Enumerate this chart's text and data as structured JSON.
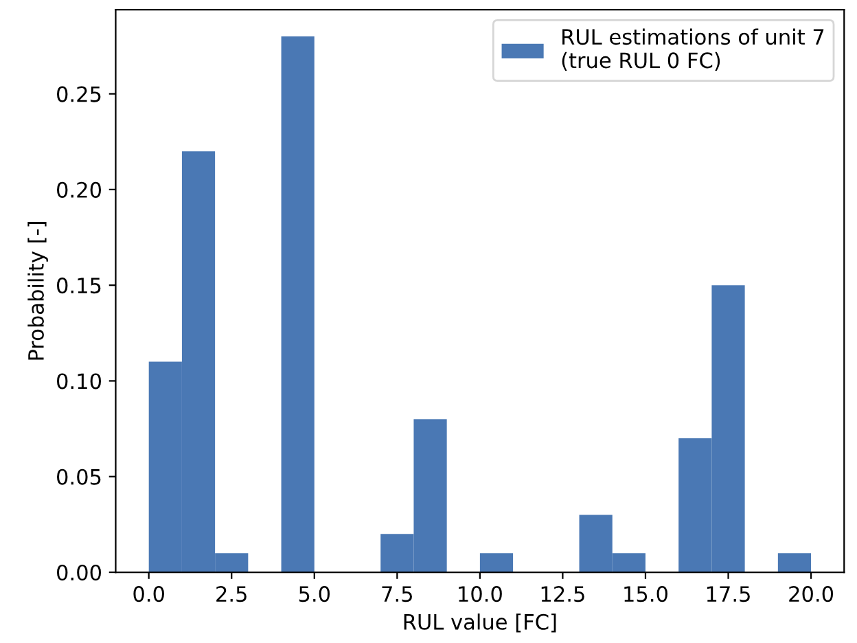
{
  "chart_data": {
    "type": "histogram",
    "xlabel": "RUL value [FC]",
    "ylabel": "Probability [-]",
    "bins": [
      0,
      1,
      2,
      3,
      4,
      5,
      6,
      7,
      8,
      9,
      10,
      11,
      12,
      13,
      14,
      15,
      16,
      17,
      18,
      19,
      20
    ],
    "series": [
      {
        "name": "RUL estimations of unit 7\n(true RUL 0 FC)",
        "color": "#4a78b4",
        "values": [
          0.11,
          0.22,
          0.01,
          0,
          0.28,
          0,
          0,
          0.02,
          0.08,
          0,
          0.01,
          0,
          0,
          0.03,
          0.01,
          0,
          0.07,
          0.15,
          0,
          0.01
        ]
      }
    ],
    "xlim": [
      -1,
      21
    ],
    "ylim": [
      0,
      0.294
    ],
    "xticks": [
      {
        "value": 0,
        "label": "0.0"
      },
      {
        "value": 2.5,
        "label": "2.5"
      },
      {
        "value": 5,
        "label": "5.0"
      },
      {
        "value": 7.5,
        "label": "7.5"
      },
      {
        "value": 10,
        "label": "10.0"
      },
      {
        "value": 12.5,
        "label": "12.5"
      },
      {
        "value": 15,
        "label": "15.0"
      },
      {
        "value": 17.5,
        "label": "17.5"
      },
      {
        "value": 20,
        "label": "20.0"
      }
    ],
    "yticks": [
      {
        "value": 0,
        "label": "0.00"
      },
      {
        "value": 0.05,
        "label": "0.05"
      },
      {
        "value": 0.1,
        "label": "0.10"
      },
      {
        "value": 0.15,
        "label": "0.15"
      },
      {
        "value": 0.2,
        "label": "0.20"
      },
      {
        "value": 0.25,
        "label": "0.25"
      }
    ],
    "legend": "top right",
    "grid": false
  }
}
